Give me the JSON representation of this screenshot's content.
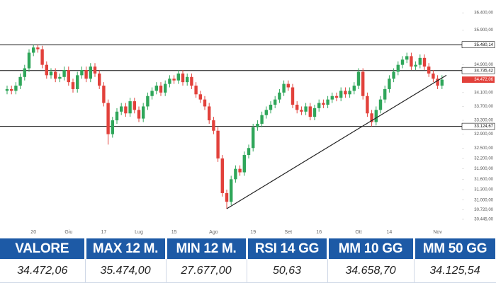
{
  "chart_data": {
    "type": "candlestick",
    "categories": [
      null,
      null,
      null,
      null,
      null,
      null,
      "20",
      null,
      null,
      null,
      null,
      null,
      null,
      null,
      "Giu",
      null,
      null,
      null,
      null,
      null,
      null,
      null,
      "17",
      null,
      null,
      null,
      null,
      null,
      null,
      null,
      "Lug",
      null,
      null,
      null,
      null,
      null,
      null,
      null,
      "15",
      null,
      null,
      null,
      null,
      null,
      null,
      null,
      null,
      "Ago",
      null,
      null,
      null,
      null,
      null,
      null,
      null,
      null,
      "19",
      null,
      null,
      null,
      null,
      null,
      null,
      null,
      "Set",
      null,
      null,
      null,
      null,
      null,
      null,
      "16",
      null,
      null,
      null,
      null,
      null,
      null,
      null,
      null,
      "Ott",
      null,
      null,
      null,
      null,
      null,
      null,
      "14",
      null,
      null,
      null,
      null,
      null,
      null,
      null,
      null,
      null,
      null,
      "Nov",
      null
    ],
    "open": [
      34150,
      34200,
      34150,
      34300,
      34550,
      34800,
      35250,
      35400,
      35350,
      34900,
      34600,
      34700,
      34500,
      34550,
      34750,
      34400,
      34200,
      34600,
      34750,
      34500,
      34850,
      34650,
      34300,
      33800,
      32900,
      33300,
      33550,
      33700,
      33500,
      33850,
      33600,
      33350,
      33700,
      34000,
      34150,
      34300,
      34100,
      34350,
      34500,
      34450,
      34650,
      34400,
      34550,
      34300,
      34050,
      33900,
      33700,
      33300,
      33000,
      32200,
      31200,
      30950,
      31600,
      31900,
      31800,
      32300,
      32500,
      33100,
      33200,
      33450,
      33600,
      33750,
      33900,
      34100,
      34350,
      34250,
      33750,
      33600,
      33550,
      33700,
      33400,
      33650,
      33800,
      33750,
      33900,
      34000,
      33950,
      34150,
      34050,
      34150,
      34300,
      34700,
      34000,
      33500,
      33250,
      33600,
      33900,
      34200,
      34500,
      34700,
      34900,
      35050,
      35150,
      34850,
      34900,
      35100,
      34850,
      34650,
      34500,
      34300
    ],
    "high": [
      34300,
      34300,
      34400,
      34650,
      34900,
      35350,
      35480,
      35480,
      35450,
      35000,
      34800,
      34800,
      34650,
      34850,
      34850,
      34500,
      34700,
      34850,
      34850,
      34950,
      34950,
      34750,
      34400,
      33900,
      33400,
      33650,
      33800,
      33800,
      33950,
      33950,
      33700,
      33800,
      34100,
      34250,
      34400,
      34400,
      34450,
      34600,
      34600,
      34750,
      34750,
      34650,
      34650,
      34400,
      34150,
      34000,
      33800,
      33400,
      33100,
      32300,
      31300,
      31700,
      32000,
      32000,
      32400,
      32600,
      33200,
      33300,
      33550,
      33700,
      33850,
      34000,
      34200,
      34450,
      34450,
      34350,
      33850,
      33700,
      33800,
      33800,
      33750,
      33900,
      33900,
      34000,
      34100,
      34100,
      34250,
      34250,
      34250,
      34400,
      34800,
      34800,
      34100,
      33600,
      33700,
      34000,
      34300,
      34600,
      34800,
      35000,
      35150,
      35250,
      35250,
      35000,
      35200,
      35200,
      34950,
      34750,
      34600,
      34600
    ],
    "low": [
      34050,
      34050,
      34050,
      34200,
      34450,
      34700,
      35150,
      35250,
      34800,
      34500,
      34500,
      34400,
      34400,
      34450,
      34300,
      34100,
      34100,
      34500,
      34400,
      34400,
      34550,
      34200,
      33700,
      32600,
      32800,
      33200,
      33450,
      33400,
      33400,
      33500,
      33250,
      33250,
      33600,
      33900,
      34050,
      34000,
      34000,
      34250,
      34350,
      34350,
      34300,
      34300,
      34200,
      33950,
      33800,
      33600,
      33200,
      32900,
      32100,
      31100,
      30750,
      30850,
      31500,
      31700,
      31700,
      32200,
      32400,
      33000,
      33100,
      33350,
      33500,
      33650,
      33800,
      34000,
      34150,
      33650,
      33500,
      33450,
      33450,
      33300,
      33300,
      33550,
      33650,
      33650,
      33800,
      33850,
      33850,
      33950,
      33950,
      34050,
      34200,
      33900,
      33400,
      33124.67,
      33150,
      33500,
      33800,
      34100,
      34400,
      34600,
      34800,
      34950,
      34750,
      34750,
      34800,
      34750,
      34550,
      34400,
      34200,
      34200
    ],
    "close": [
      34200,
      34150,
      34300,
      34550,
      34800,
      35250,
      35400,
      35350,
      34900,
      34600,
      34700,
      34500,
      34550,
      34750,
      34400,
      34200,
      34600,
      34750,
      34500,
      34850,
      34650,
      34300,
      33800,
      32900,
      33300,
      33550,
      33700,
      33500,
      33850,
      33600,
      33350,
      33700,
      34000,
      34150,
      34300,
      34100,
      34350,
      34500,
      34450,
      34650,
      34400,
      34550,
      34300,
      34050,
      33900,
      33700,
      33300,
      33000,
      32200,
      31200,
      30950,
      31600,
      31900,
      31800,
      32300,
      32500,
      33100,
      33200,
      33450,
      33600,
      33750,
      33900,
      34100,
      34350,
      34250,
      33750,
      33600,
      33550,
      33700,
      33400,
      33650,
      33800,
      33750,
      33900,
      34000,
      33950,
      34150,
      34050,
      34150,
      34300,
      34700,
      34000,
      33500,
      33250,
      33600,
      33900,
      34200,
      34500,
      34700,
      34900,
      35050,
      35150,
      34850,
      34900,
      35100,
      34850,
      34650,
      34500,
      34300,
      34472.06
    ],
    "up_color": "#2fa65a",
    "down_color": "#e2413b",
    "ylim": [
      30240,
      36770
    ],
    "yticks": [
      {
        "value": 36400,
        "label": "36.400,00"
      },
      {
        "value": 35900,
        "label": "35.900,00"
      },
      {
        "value": 34900,
        "label": "34.900,00"
      },
      {
        "value": 34100,
        "label": "34.100,00"
      },
      {
        "value": 33700,
        "label": "33.700,00"
      },
      {
        "value": 33300,
        "label": "33.300,00"
      },
      {
        "value": 32900,
        "label": "32.900,00"
      },
      {
        "value": 32500,
        "label": "32.500,00"
      },
      {
        "value": 32200,
        "label": "32.200,00"
      },
      {
        "value": 31900,
        "label": "31.900,00"
      },
      {
        "value": 31600,
        "label": "31.600,00"
      },
      {
        "value": 31300,
        "label": "31.300,00"
      },
      {
        "value": 31000,
        "label": "31.000,00"
      },
      {
        "value": 30720,
        "label": "30.720,00"
      },
      {
        "value": 30445,
        "label": "30.445,00"
      }
    ],
    "levels": [
      {
        "value": 35480.14,
        "label": "35.480,14"
      },
      {
        "value": 34735.42,
        "label": "34.735,42"
      },
      {
        "value": 33124.67,
        "label": "33.124,67"
      }
    ],
    "level_color": "#111111",
    "last_price": {
      "value": 34472.06,
      "label": "34.472,06"
    },
    "last_price_color": "#e2413b",
    "trendline": {
      "x": [
        50,
        100
      ],
      "y": [
        30750,
        34600
      ],
      "color": "#222222"
    }
  },
  "table": {
    "headers": [
      "VALORE",
      "MAX 12 M.",
      "MIN 12 M.",
      "RSI 14 GG",
      "MM 10 GG",
      "MM 50 GG"
    ],
    "rows": [
      [
        "34.472,06",
        "35.474,00",
        "27.677,00",
        "50,63",
        "34.658,70",
        "34.125,54"
      ]
    ]
  }
}
